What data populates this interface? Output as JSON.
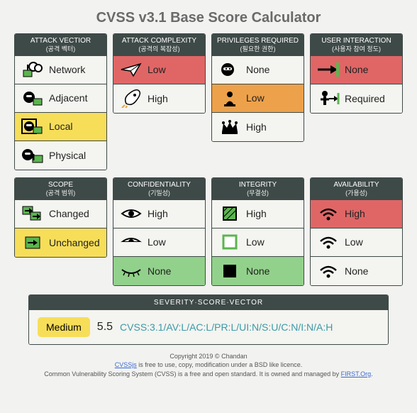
{
  "title": "CVSS v3.1 Base Score Calculator",
  "groups_row1": [
    {
      "header": "ATTACK VECTIOR",
      "sub": "(공격 벡터)",
      "options": [
        {
          "label": "Network",
          "icon": "network",
          "sel": ""
        },
        {
          "label": "Adjacent",
          "icon": "adjacent",
          "sel": ""
        },
        {
          "label": "Local",
          "icon": "local",
          "sel": "sel-yellow"
        },
        {
          "label": "Physical",
          "icon": "physical",
          "sel": ""
        }
      ]
    },
    {
      "header": "ATTACK COMPLEXITY",
      "sub": "(공격의 복잡성)",
      "options": [
        {
          "label": "Low",
          "icon": "plane",
          "sel": "sel-red"
        },
        {
          "label": "High",
          "icon": "rocket",
          "sel": ""
        }
      ]
    },
    {
      "header": "PRIVILEGES REQUIRED",
      "sub": "(필요한 권한)",
      "options": [
        {
          "label": "None",
          "icon": "ninja",
          "sel": ""
        },
        {
          "label": "Low",
          "icon": "pawn",
          "sel": "sel-orange"
        },
        {
          "label": "High",
          "icon": "crown",
          "sel": ""
        }
      ]
    },
    {
      "header": "USER INTERACTION",
      "sub": "(사용자 참여 정도)",
      "options": [
        {
          "label": "None",
          "icon": "arrow-none",
          "sel": "sel-red"
        },
        {
          "label": "Required",
          "icon": "person-req",
          "sel": ""
        }
      ]
    }
  ],
  "groups_row2": [
    {
      "header": "SCOPE",
      "sub": "(공격 범위)",
      "options": [
        {
          "label": "Changed",
          "icon": "changed",
          "sel": ""
        },
        {
          "label": "Unchanged",
          "icon": "unchanged",
          "sel": "sel-yellow"
        }
      ]
    },
    {
      "header": "CONFIDENTIALITY",
      "sub": "(기밀성)",
      "options": [
        {
          "label": "High",
          "icon": "eye-open",
          "sel": ""
        },
        {
          "label": "Low",
          "icon": "eye-half",
          "sel": ""
        },
        {
          "label": "None",
          "icon": "eye-closed",
          "sel": "sel-green"
        }
      ]
    },
    {
      "header": "INTEGRITY",
      "sub": "(무결성)",
      "options": [
        {
          "label": "High",
          "icon": "sq-hatch",
          "sel": ""
        },
        {
          "label": "Low",
          "icon": "sq-open",
          "sel": ""
        },
        {
          "label": "None",
          "icon": "sq-solid",
          "sel": "sel-green"
        }
      ]
    },
    {
      "header": "AVAILABILITY",
      "sub": "(가용성)",
      "options": [
        {
          "label": "High",
          "icon": "wifi",
          "sel": "sel-red"
        },
        {
          "label": "Low",
          "icon": "wifi",
          "sel": ""
        },
        {
          "label": "None",
          "icon": "wifi",
          "sel": ""
        }
      ]
    }
  ],
  "result": {
    "header": "SEVERITY·SCORE·VECTOR",
    "severity": "Medium",
    "score": "5.5",
    "vector": "CVSS:3.1/AV:L/AC:L/PR:L/UI:N/S:U/C:N/I:N/A:H"
  },
  "footer": {
    "line1": "Copyright 2019 © Chandan",
    "cvssjs_link": "CVSSjs",
    "line2_rest": " is free to use, copy, modification under a BSD like licence.",
    "line3_pre": "Common Vulnerability Scoring System (CVSS) is a free and open standard. It is owned and managed by ",
    "first_link": "FIRST.Org",
    "line3_post": "."
  },
  "colors": {
    "yellow": "#f7de59",
    "red": "#e06666",
    "orange": "#eda14a",
    "green": "#92d18b",
    "header_bg": "#3e4a47",
    "accent_green": "#5bb54f"
  }
}
